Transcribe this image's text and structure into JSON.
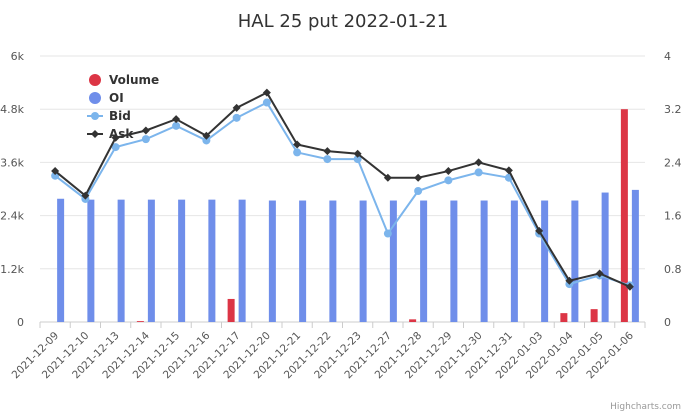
{
  "chart_data": {
    "type": "bar",
    "title": "HAL 25 put 2022-01-21",
    "credits": "Highcharts.com",
    "categories": [
      "2021-12-09",
      "2021-12-10",
      "2021-12-13",
      "2021-12-14",
      "2021-12-15",
      "2021-12-16",
      "2021-12-17",
      "2021-12-20",
      "2021-12-21",
      "2021-12-22",
      "2021-12-23",
      "2021-12-27",
      "2021-12-28",
      "2021-12-29",
      "2021-12-30",
      "2021-12-31",
      "2022-01-03",
      "2022-01-04",
      "2022-01-05",
      "2022-01-06"
    ],
    "y_left": {
      "ticks": [
        "0",
        "1.2k",
        "2.4k",
        "3.6k",
        "4.8k",
        "6k"
      ],
      "ylim": [
        0,
        6000
      ]
    },
    "y_right": {
      "ticks": [
        "0",
        "0.8",
        "1.6",
        "2.4",
        "3.2",
        "4"
      ],
      "ylim": [
        0,
        4
      ]
    },
    "grid": true,
    "legend_position": "top-left",
    "series": [
      {
        "name": "Volume",
        "type": "bar",
        "axis": "left",
        "color": "#dc3545",
        "values": [
          0,
          0,
          0,
          20,
          0,
          0,
          520,
          0,
          0,
          0,
          0,
          0,
          60,
          0,
          0,
          0,
          0,
          200,
          290,
          4800
        ]
      },
      {
        "name": "OI",
        "type": "bar",
        "axis": "left",
        "color": "#6f8eea",
        "values": [
          2780,
          2760,
          2760,
          2760,
          2760,
          2760,
          2760,
          2740,
          2740,
          2740,
          2740,
          2740,
          2740,
          2740,
          2740,
          2740,
          2740,
          2740,
          2920,
          2980
        ]
      },
      {
        "name": "Bid",
        "type": "line",
        "axis": "right",
        "color": "#7cb5ec",
        "marker": "circle",
        "values": [
          2.2,
          1.85,
          2.63,
          2.75,
          2.95,
          2.73,
          3.07,
          3.3,
          2.55,
          2.45,
          2.45,
          1.33,
          1.97,
          2.13,
          2.25,
          2.17,
          1.33,
          0.57,
          0.7,
          0.55
        ]
      },
      {
        "name": "Ask",
        "type": "line",
        "axis": "right",
        "color": "#333333",
        "marker": "diamond",
        "values": [
          2.27,
          1.9,
          2.77,
          2.88,
          3.05,
          2.8,
          3.22,
          3.45,
          2.67,
          2.57,
          2.53,
          2.17,
          2.17,
          2.27,
          2.4,
          2.28,
          1.37,
          0.62,
          0.73,
          0.53
        ]
      }
    ]
  }
}
